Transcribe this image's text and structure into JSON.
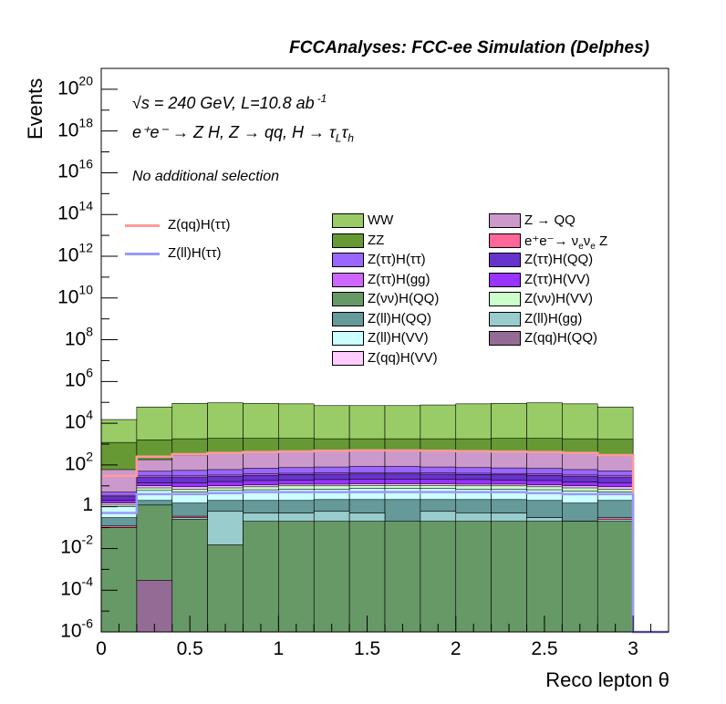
{
  "header": "FCCAnalyses: FCC-ee Simulation (Delphes)",
  "annotations": {
    "line1": "√s = 240 GeV, L=10.8 ab",
    "line1_exp": "-1",
    "line2": "e⁺e⁻ → Z H, Z  → qq, H  → τ",
    "line2_sub1": "L",
    "line2_tau": "τ",
    "line2_sub2": "h",
    "line3": "No additional selection"
  },
  "chart_data": {
    "type": "area",
    "stacked": true,
    "log_y": true,
    "xlabel": "Reco lepton θ",
    "ylabel": "Events",
    "xlim": [
      0,
      3.2
    ],
    "ylim": [
      1e-06,
      1e+21
    ],
    "x_ticks": [
      "0",
      "0.5",
      "1",
      "1.5",
      "2",
      "2.5",
      "3"
    ],
    "y_ticks": [
      {
        "base": "10",
        "exp": "-6"
      },
      {
        "base": "10",
        "exp": "-4"
      },
      {
        "base": "10",
        "exp": "-2"
      },
      {
        "base": "1",
        "exp": ""
      },
      {
        "base": "10",
        "exp": "2"
      },
      {
        "base": "10",
        "exp": "4"
      },
      {
        "base": "10",
        "exp": "6"
      },
      {
        "base": "10",
        "exp": "8"
      },
      {
        "base": "10",
        "exp": "10"
      },
      {
        "base": "10",
        "exp": "12"
      },
      {
        "base": "10",
        "exp": "14"
      },
      {
        "base": "10",
        "exp": "16"
      },
      {
        "base": "10",
        "exp": "18"
      },
      {
        "base": "10",
        "exp": "20"
      }
    ],
    "bin_edges": [
      0,
      0.2,
      0.4,
      0.6,
      0.8,
      1.0,
      1.2,
      1.4,
      1.6,
      1.8,
      2.0,
      2.2,
      2.4,
      2.6,
      2.8,
      3.0,
      3.2
    ],
    "stack_order": [
      "Z(qq)H(QQ)",
      "Z(νν)H(QQ)",
      "Z(ll)H(gg)",
      "e⁺e⁻→ ν_eν_e Z",
      "Z(ll)H(QQ)",
      "Z(ll)H(VV)",
      "Z(νν)H(VV)",
      "Z(qq)H(VV)",
      "Z(ττ)H(VV)",
      "Z(ττ)H(QQ)",
      "Z(ττ)H(gg)",
      "Z(ττ)H(ττ)",
      "Z → QQ",
      "ZZ",
      "WW"
    ],
    "stack_tops": [
      {
        "name": "Z(qq)H(QQ)",
        "color": "#936b94",
        "values": [
          1e-06,
          0.0003,
          1e-06,
          1e-06,
          1e-06,
          1e-06,
          1e-06,
          1e-06,
          1e-06,
          1e-06,
          1e-06,
          1e-06,
          1e-06,
          1e-06,
          1e-06,
          1e-06
        ]
      },
      {
        "name": "Z(νν)H(QQ)",
        "color": "#669966",
        "values": [
          0.1,
          1.2,
          0.25,
          0.015,
          0.2,
          0.2,
          0.2,
          0.2,
          0.2,
          0.2,
          0.2,
          0.2,
          0.2,
          0.2,
          0.2,
          1e-06
        ]
      },
      {
        "name": "Z(ll)H(gg)",
        "color": "#99cccc",
        "values": [
          0.1,
          1.2,
          0.3,
          0.6,
          0.5,
          0.5,
          0.6,
          0.5,
          0.0003,
          0.6,
          0.5,
          0.5,
          0.3,
          0.2,
          0.25,
          1e-06
        ]
      },
      {
        "name": "e⁺e⁻→ ν_eν_e Z",
        "color": "#ff6699",
        "values": [
          0.12,
          1.2,
          0.35,
          0.6,
          0.5,
          0.5,
          0.6,
          0.5,
          0.0003,
          0.6,
          0.25,
          0.5,
          0.3,
          0.2,
          0.3,
          1e-06
        ]
      },
      {
        "name": "Z(ll)H(QQ)",
        "color": "#669999",
        "values": [
          0.3,
          2,
          1.5,
          2,
          2,
          2,
          2.2,
          2.2,
          2.2,
          2.2,
          2.2,
          2.2,
          2,
          1.5,
          2,
          1e-06
        ]
      },
      {
        "name": "Z(ll)H(VV)",
        "color": "#ccffff",
        "values": [
          1,
          6,
          5,
          6,
          6.5,
          7,
          7,
          7.5,
          7.5,
          7.5,
          7,
          7,
          6.5,
          5.5,
          5,
          1e-06
        ]
      },
      {
        "name": "Z(νν)H(VV)",
        "color": "#ccffcc",
        "values": [
          1.2,
          8,
          7,
          8,
          9,
          10,
          10,
          10.5,
          10.5,
          10.5,
          10,
          10,
          9,
          8,
          7,
          1e-06
        ]
      },
      {
        "name": "Z(qq)H(VV)",
        "color": "#ffccff",
        "values": [
          1.5,
          10,
          9,
          10,
          11,
          12,
          12,
          12.5,
          12.5,
          12.5,
          12,
          12,
          11,
          10,
          9,
          1e-06
        ]
      },
      {
        "name": "Z(ττ)H(VV)",
        "color": "#9933ff",
        "values": [
          2,
          14,
          14,
          16,
          18,
          19,
          20,
          21,
          21,
          21,
          20,
          19,
          18,
          15,
          14,
          1e-06
        ]
      },
      {
        "name": "Z(ττ)H(QQ)",
        "color": "#6633cc",
        "values": [
          3,
          25,
          25,
          28,
          32,
          35,
          36,
          37,
          37,
          36,
          35,
          34,
          32,
          28,
          25,
          1e-06
        ]
      },
      {
        "name": "Z(ττ)H(gg)",
        "color": "#cc66ff",
        "values": [
          3.5,
          30,
          30,
          33,
          38,
          40,
          42,
          43,
          43,
          42,
          40,
          39,
          37,
          33,
          30,
          1e-06
        ]
      },
      {
        "name": "Z(ττ)H(ττ)",
        "color": "#9966ff",
        "values": [
          5,
          50,
          55,
          60,
          70,
          75,
          80,
          85,
          85,
          80,
          75,
          72,
          68,
          60,
          52,
          1e-06
        ]
      },
      {
        "name": "Z → QQ",
        "color": "#cc99cc",
        "values": [
          60,
          180,
          300,
          380,
          420,
          460,
          500,
          520,
          540,
          520,
          480,
          460,
          440,
          380,
          320,
          1e-06
        ]
      },
      {
        "name": "ZZ",
        "color": "#669933",
        "values": [
          1200,
          1600,
          1800,
          1900,
          1900,
          1900,
          1800,
          1800,
          1800,
          1800,
          1800,
          1900,
          1900,
          1800,
          1700,
          1e-06
        ]
      },
      {
        "name": "WW",
        "color": "#99cc66",
        "values": [
          15000,
          60000,
          90000,
          95000,
          90000,
          85000,
          70000,
          70000,
          70000,
          75000,
          85000,
          90000,
          95000,
          85000,
          60000,
          1e-06
        ]
      }
    ],
    "overlay_lines": [
      {
        "name": "Z(qq)H(ττ)",
        "color": "#ff9999",
        "values": [
          30,
          250,
          330,
          380,
          420,
          450,
          480,
          500,
          500,
          480,
          460,
          440,
          420,
          380,
          300,
          1e-06
        ]
      },
      {
        "name": "Z(ll)H(ττ)",
        "color": "#9999ff",
        "values": [
          0.5,
          4,
          4,
          4.5,
          5,
          5,
          5,
          5,
          5,
          5,
          5,
          5,
          4.5,
          4,
          4,
          1e-06
        ]
      }
    ],
    "legend_lines": [
      "Z(qq)H(ττ)",
      "Z(ll)H(ττ)"
    ],
    "legend_col1": [
      {
        "label": "WW",
        "color": "#99cc66"
      },
      {
        "label": "ZZ",
        "color": "#669933"
      },
      {
        "label": "Z(ττ)H(ττ)",
        "color": "#9966ff"
      },
      {
        "label": "Z(ττ)H(gg)",
        "color": "#cc66ff"
      },
      {
        "label": "Z(νν)H(QQ)",
        "color": "#669966"
      },
      {
        "label": "Z(ll)H(QQ)",
        "color": "#669999"
      },
      {
        "label": "Z(ll)H(VV)",
        "color": "#ccffff"
      },
      {
        "label": "Z(qq)H(VV)",
        "color": "#ffccff"
      }
    ],
    "legend_col2": [
      {
        "label": "Z → QQ",
        "color": "#cc99cc"
      },
      {
        "label": "e⁺e⁻→ ν",
        "sub1": "e",
        "mid": "ν",
        "sub2": "e",
        "tail": " Z",
        "color": "#ff6699"
      },
      {
        "label": "Z(ττ)H(QQ)",
        "color": "#6633cc"
      },
      {
        "label": "Z(ττ)H(VV)",
        "color": "#9933ff"
      },
      {
        "label": "Z(νν)H(VV)",
        "color": "#ccffcc"
      },
      {
        "label": "Z(ll)H(gg)",
        "color": "#99cccc"
      },
      {
        "label": "Z(qq)H(QQ)",
        "color": "#936b94"
      }
    ]
  }
}
